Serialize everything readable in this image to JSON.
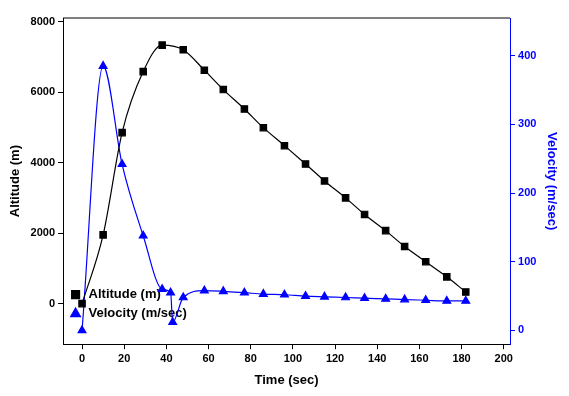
{
  "chart_data": {
    "type": "line",
    "x_label": "Time (sec)",
    "y_label": "Altitude (m)",
    "y2_label": "Velocity (m/sec)",
    "xlim": [
      -9,
      203
    ],
    "xticks": [
      0,
      20,
      40,
      60,
      80,
      100,
      120,
      140,
      160,
      180,
      200
    ],
    "ylim": [
      -1150,
      8100
    ],
    "yticks": [
      0,
      2000,
      4000,
      6000,
      8000
    ],
    "y2lim": [
      -20,
      455
    ],
    "y2ticks": [
      0,
      100,
      200,
      300,
      400
    ],
    "legend": "top-right",
    "grid": false,
    "series": [
      {
        "name": "Altitude (m)",
        "color": "#000000",
        "marker": "square",
        "line_style": "solid",
        "x": [
          0,
          10,
          19,
          29,
          38,
          48,
          58,
          67,
          77,
          86,
          96,
          106,
          115,
          125,
          134,
          144,
          153,
          163,
          173,
          182
        ],
        "values": [
          0,
          1950,
          4850,
          6580,
          7330,
          7200,
          6620,
          6070,
          5520,
          4990,
          4480,
          3960,
          3480,
          3000,
          2530,
          2070,
          1620,
          1190,
          760,
          330
        ]
      },
      {
        "name": "Velocity (m/sec)",
        "color": "#0000ff",
        "marker": "triangle",
        "line_style": "solid",
        "axis": "y2",
        "x": [
          0,
          10,
          19,
          29,
          38,
          42,
          43,
          48,
          58,
          67,
          77,
          86,
          96,
          106,
          115,
          125,
          134,
          144,
          153,
          163,
          173,
          182
        ],
        "values": [
          0,
          385,
          242,
          138,
          60,
          55,
          12,
          48,
          58,
          57,
          55,
          53,
          52,
          50,
          49,
          48,
          47,
          46,
          45,
          44,
          43,
          43
        ]
      }
    ]
  }
}
